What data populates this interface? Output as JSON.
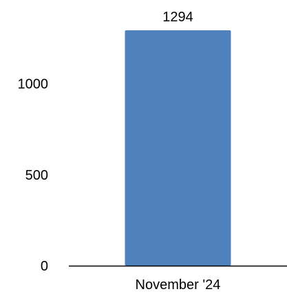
{
  "chart_data": {
    "type": "bar",
    "categories": [
      "November '24"
    ],
    "values": [
      1294
    ],
    "value_labels": [
      "1294"
    ],
    "title": "",
    "xlabel": "",
    "ylabel": "",
    "ylim": [
      0,
      1294
    ],
    "yticks": [
      0,
      500,
      1000
    ],
    "ytick_labels": [
      "0",
      "500",
      "1000"
    ],
    "grid": false,
    "legend": "none",
    "bar_color": "#4f81bd",
    "axis_color": "#000000"
  }
}
